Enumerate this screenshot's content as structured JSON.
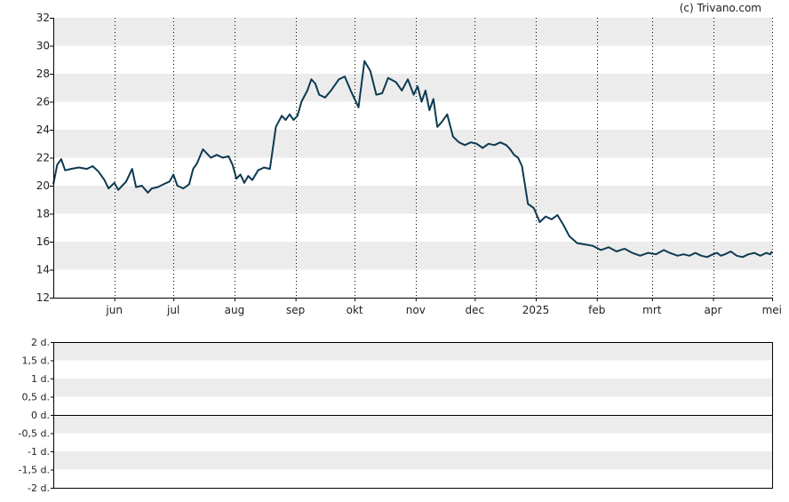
{
  "credit": "(c) Trivano.com",
  "colors": {
    "line": "#0d3a52",
    "band": "#ececec",
    "axis": "#000000",
    "grid": "#000000"
  },
  "chart_data": [
    {
      "type": "line",
      "title": "",
      "xlabel": "",
      "ylabel": "",
      "ylim": [
        12,
        32
      ],
      "yticks": [
        12,
        14,
        16,
        18,
        20,
        22,
        24,
        26,
        28,
        30,
        32
      ],
      "ytick_labels": [
        "12",
        "14",
        "16",
        "18",
        "20",
        "22",
        "24",
        "26",
        "28",
        "30",
        "32"
      ],
      "x_period": [
        "2024-05-01",
        "2025-05-01"
      ],
      "xtick_labels": [
        "jun",
        "jul",
        "aug",
        "sep",
        "okt",
        "nov",
        "dec",
        "2025",
        "feb",
        "mrt",
        "apr",
        "mei"
      ],
      "xtick_dates": [
        "2024-06-01",
        "2024-07-01",
        "2024-08-01",
        "2024-09-01",
        "2024-10-01",
        "2024-11-01",
        "2024-12-01",
        "2025-01-01",
        "2025-02-01",
        "2025-03-01",
        "2025-04-01",
        "2025-05-01"
      ],
      "grid": true,
      "legend": "none",
      "series": [
        {
          "name": "",
          "x": [
            "2024-05-01",
            "2024-05-03",
            "2024-05-05",
            "2024-05-07",
            "2024-05-10",
            "2024-05-14",
            "2024-05-18",
            "2024-05-21",
            "2024-05-24",
            "2024-05-27",
            "2024-05-29",
            "2024-06-01",
            "2024-06-03",
            "2024-06-05",
            "2024-06-07",
            "2024-06-10",
            "2024-06-12",
            "2024-06-15",
            "2024-06-18",
            "2024-06-20",
            "2024-06-23",
            "2024-06-26",
            "2024-06-29",
            "2024-07-01",
            "2024-07-03",
            "2024-07-06",
            "2024-07-09",
            "2024-07-11",
            "2024-07-13",
            "2024-07-16",
            "2024-07-18",
            "2024-07-20",
            "2024-07-23",
            "2024-07-26",
            "2024-07-29",
            "2024-07-31",
            "2024-08-02",
            "2024-08-04",
            "2024-08-06",
            "2024-08-08",
            "2024-08-10",
            "2024-08-13",
            "2024-08-16",
            "2024-08-19",
            "2024-08-22",
            "2024-08-25",
            "2024-08-27",
            "2024-08-29",
            "2024-08-31",
            "2024-09-02",
            "2024-09-04",
            "2024-09-07",
            "2024-09-09",
            "2024-09-11",
            "2024-09-13",
            "2024-09-16",
            "2024-09-19",
            "2024-09-21",
            "2024-09-23",
            "2024-09-26",
            "2024-09-29",
            "2024-10-01",
            "2024-10-03",
            "2024-10-06",
            "2024-10-09",
            "2024-10-12",
            "2024-10-15",
            "2024-10-18",
            "2024-10-22",
            "2024-10-25",
            "2024-10-28",
            "2024-10-31",
            "2024-11-02",
            "2024-11-04",
            "2024-11-06",
            "2024-11-08",
            "2024-11-10",
            "2024-11-12",
            "2024-11-14",
            "2024-11-17",
            "2024-11-20",
            "2024-11-23",
            "2024-11-26",
            "2024-11-29",
            "2024-12-02",
            "2024-12-05",
            "2024-12-08",
            "2024-12-11",
            "2024-12-14",
            "2024-12-17",
            "2024-12-19",
            "2024-12-21",
            "2024-12-23",
            "2024-12-25",
            "2024-12-28",
            "2024-12-31",
            "2025-01-03",
            "2025-01-06",
            "2025-01-09",
            "2025-01-12",
            "2025-01-15",
            "2025-01-18",
            "2025-01-22",
            "2025-01-26",
            "2025-01-30",
            "2025-02-03",
            "2025-02-07",
            "2025-02-11",
            "2025-02-15",
            "2025-02-19",
            "2025-02-23",
            "2025-02-27",
            "2025-03-03",
            "2025-03-07",
            "2025-03-10",
            "2025-03-12",
            "2025-03-14",
            "2025-03-17",
            "2025-03-20",
            "2025-03-23",
            "2025-03-26",
            "2025-03-29",
            "2025-04-01",
            "2025-04-03",
            "2025-04-05",
            "2025-04-07",
            "2025-04-10",
            "2025-04-13",
            "2025-04-16",
            "2025-04-19",
            "2025-04-22",
            "2025-04-25",
            "2025-04-28",
            "2025-04-30",
            "2025-05-01"
          ],
          "y": [
            20.1,
            21.5,
            21.9,
            21.1,
            21.2,
            21.3,
            21.2,
            21.4,
            21.0,
            20.4,
            19.8,
            20.2,
            19.7,
            20.0,
            20.3,
            21.2,
            19.9,
            20.0,
            19.5,
            19.8,
            19.9,
            20.1,
            20.3,
            20.8,
            20.0,
            19.8,
            20.1,
            21.2,
            21.6,
            22.6,
            22.3,
            22.0,
            22.2,
            22.0,
            22.1,
            21.5,
            20.5,
            20.8,
            20.2,
            20.7,
            20.4,
            21.1,
            21.3,
            21.2,
            24.2,
            25.0,
            24.7,
            25.1,
            24.7,
            25.0,
            26.0,
            26.8,
            27.6,
            27.3,
            26.5,
            26.3,
            26.8,
            27.2,
            27.6,
            27.8,
            26.8,
            26.2,
            25.6,
            28.9,
            28.2,
            26.5,
            26.6,
            27.7,
            27.4,
            26.8,
            27.6,
            26.5,
            27.1,
            26.0,
            26.8,
            25.4,
            26.2,
            24.2,
            24.5,
            25.1,
            23.5,
            23.1,
            22.9,
            23.1,
            23.0,
            22.7,
            23.0,
            22.9,
            23.1,
            22.9,
            22.6,
            22.2,
            22.0,
            21.4,
            18.7,
            18.4,
            17.4,
            17.8,
            17.6,
            17.9,
            17.2,
            16.4,
            15.9,
            15.8,
            15.7,
            15.4,
            15.6,
            15.3,
            15.5,
            15.2,
            15.0,
            15.2,
            15.1,
            15.4,
            15.2,
            15.1,
            15.0,
            15.1,
            15.0,
            15.2,
            15.0,
            14.9,
            15.1,
            15.2,
            15.0,
            15.1,
            15.3,
            15.0,
            14.9,
            15.1,
            15.2,
            15.0,
            15.2,
            15.1,
            15.3
          ]
        }
      ]
    },
    {
      "type": "line",
      "title": "",
      "xlabel": "",
      "ylabel": "",
      "ylim": [
        -2,
        2
      ],
      "yticks": [
        -2,
        -1.5,
        -1,
        -0.5,
        0,
        0.5,
        1,
        1.5,
        2
      ],
      "ytick_labels": [
        "-2 d.",
        "-1,5 d.",
        "-1 d.",
        "-0,5 d.",
        "0 d.",
        "0,5 d.",
        "1 d.",
        "1,5 d.",
        "2 d."
      ],
      "grid": true,
      "legend": "none",
      "baseline": 0,
      "series": []
    }
  ]
}
